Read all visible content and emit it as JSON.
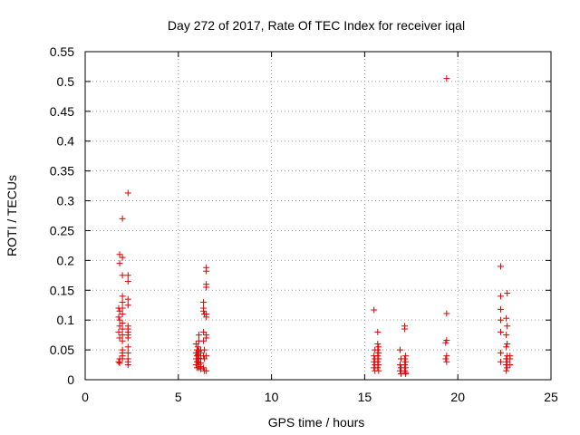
{
  "chart_data": {
    "type": "scatter",
    "title": "Day 272 of 2017, Rate Of TEC Index for receiver iqal",
    "xlabel": "GPS time / hours",
    "ylabel": "ROTI / TECUs",
    "xlim": [
      0,
      25
    ],
    "ylim": [
      0,
      0.55
    ],
    "xticks": [
      0,
      5,
      10,
      15,
      20,
      25
    ],
    "xtick_labels": [
      "0",
      "5",
      "10",
      "15",
      "20",
      "25"
    ],
    "yticks": [
      0,
      0.05,
      0.1,
      0.15,
      0.2,
      0.25,
      0.3,
      0.35,
      0.4,
      0.45,
      0.5,
      0.55
    ],
    "ytick_labels": [
      "0",
      "0.05",
      "0.1",
      "0.15",
      "0.2",
      "0.25",
      "0.3",
      "0.35",
      "0.4",
      "0.45",
      "0.5",
      "0.55"
    ],
    "grid": true,
    "marker": "+",
    "color": "#e00000",
    "series": [
      {
        "name": "ROTI",
        "points": [
          [
            1.85,
            0.21
          ],
          [
            1.85,
            0.195
          ],
          [
            1.8,
            0.12
          ],
          [
            1.85,
            0.115
          ],
          [
            1.8,
            0.105
          ],
          [
            1.85,
            0.1
          ],
          [
            1.85,
            0.09
          ],
          [
            1.8,
            0.08
          ],
          [
            1.85,
            0.07
          ],
          [
            1.85,
            0.035
          ],
          [
            1.8,
            0.03
          ],
          [
            1.85,
            0.028
          ],
          [
            2.0,
            0.27
          ],
          [
            2.0,
            0.205
          ],
          [
            2.0,
            0.175
          ],
          [
            2.0,
            0.14
          ],
          [
            2.0,
            0.13
          ],
          [
            2.0,
            0.12
          ],
          [
            2.0,
            0.11
          ],
          [
            2.0,
            0.095
          ],
          [
            2.0,
            0.085
          ],
          [
            2.0,
            0.075
          ],
          [
            2.0,
            0.065
          ],
          [
            2.0,
            0.05
          ],
          [
            2.0,
            0.045
          ],
          [
            2.0,
            0.04
          ],
          [
            2.0,
            0.035
          ],
          [
            2.3,
            0.313
          ],
          [
            2.3,
            0.175
          ],
          [
            2.3,
            0.165
          ],
          [
            2.3,
            0.135
          ],
          [
            2.3,
            0.125
          ],
          [
            2.3,
            0.09
          ],
          [
            2.3,
            0.085
          ],
          [
            2.3,
            0.08
          ],
          [
            2.3,
            0.075
          ],
          [
            2.3,
            0.07
          ],
          [
            2.3,
            0.055
          ],
          [
            2.3,
            0.045
          ],
          [
            2.3,
            0.035
          ],
          [
            2.3,
            0.03
          ],
          [
            2.3,
            0.025
          ],
          [
            5.95,
            0.06
          ],
          [
            6.0,
            0.05
          ],
          [
            5.95,
            0.045
          ],
          [
            6.0,
            0.04
          ],
          [
            5.95,
            0.035
          ],
          [
            6.0,
            0.03
          ],
          [
            5.95,
            0.025
          ],
          [
            6.0,
            0.02
          ],
          [
            6.1,
            0.075
          ],
          [
            6.1,
            0.065
          ],
          [
            6.05,
            0.055
          ],
          [
            6.1,
            0.048
          ],
          [
            6.05,
            0.042
          ],
          [
            6.1,
            0.036
          ],
          [
            6.05,
            0.03
          ],
          [
            6.1,
            0.025
          ],
          [
            6.1,
            0.02
          ],
          [
            6.2,
            0.05
          ],
          [
            6.2,
            0.045
          ],
          [
            6.2,
            0.035
          ],
          [
            6.2,
            0.028
          ],
          [
            6.2,
            0.022
          ],
          [
            6.2,
            0.018
          ],
          [
            6.35,
            0.13
          ],
          [
            6.35,
            0.12
          ],
          [
            6.35,
            0.115
          ],
          [
            6.4,
            0.11
          ],
          [
            6.35,
            0.08
          ],
          [
            6.35,
            0.065
          ],
          [
            6.4,
            0.05
          ],
          [
            6.35,
            0.04
          ],
          [
            6.4,
            0.035
          ],
          [
            6.35,
            0.02
          ],
          [
            6.4,
            0.015
          ],
          [
            6.5,
            0.188
          ],
          [
            6.5,
            0.182
          ],
          [
            6.5,
            0.16
          ],
          [
            6.5,
            0.155
          ],
          [
            6.5,
            0.11
          ],
          [
            6.5,
            0.105
          ],
          [
            6.5,
            0.075
          ],
          [
            6.5,
            0.07
          ],
          [
            6.5,
            0.04
          ],
          [
            6.5,
            0.015
          ],
          [
            15.5,
            0.117
          ],
          [
            15.55,
            0.05
          ],
          [
            15.5,
            0.04
          ],
          [
            15.55,
            0.035
          ],
          [
            15.5,
            0.03
          ],
          [
            15.55,
            0.025
          ],
          [
            15.5,
            0.02
          ],
          [
            15.55,
            0.015
          ],
          [
            15.7,
            0.08
          ],
          [
            15.7,
            0.06
          ],
          [
            15.75,
            0.055
          ],
          [
            15.7,
            0.05
          ],
          [
            15.75,
            0.045
          ],
          [
            15.7,
            0.04
          ],
          [
            15.75,
            0.035
          ],
          [
            15.7,
            0.03
          ],
          [
            15.75,
            0.025
          ],
          [
            15.7,
            0.02
          ],
          [
            15.75,
            0.015
          ],
          [
            16.9,
            0.05
          ],
          [
            16.95,
            0.035
          ],
          [
            16.9,
            0.025
          ],
          [
            16.95,
            0.02
          ],
          [
            16.9,
            0.015
          ],
          [
            16.95,
            0.01
          ],
          [
            17.15,
            0.09
          ],
          [
            17.15,
            0.085
          ],
          [
            17.2,
            0.04
          ],
          [
            17.15,
            0.035
          ],
          [
            17.2,
            0.03
          ],
          [
            17.15,
            0.025
          ],
          [
            17.2,
            0.02
          ],
          [
            17.15,
            0.015
          ],
          [
            17.2,
            0.012
          ],
          [
            17.2,
            0.01
          ],
          [
            19.4,
            0.505
          ],
          [
            19.4,
            0.111
          ],
          [
            19.4,
            0.066
          ],
          [
            19.35,
            0.062
          ],
          [
            19.4,
            0.04
          ],
          [
            19.35,
            0.035
          ],
          [
            19.4,
            0.03
          ],
          [
            22.3,
            0.19
          ],
          [
            22.3,
            0.14
          ],
          [
            22.3,
            0.118
          ],
          [
            22.3,
            0.1
          ],
          [
            22.3,
            0.08
          ],
          [
            22.3,
            0.045
          ],
          [
            22.3,
            0.03
          ],
          [
            22.65,
            0.145
          ],
          [
            22.6,
            0.103
          ],
          [
            22.65,
            0.09
          ],
          [
            22.6,
            0.075
          ],
          [
            22.65,
            0.06
          ],
          [
            22.6,
            0.055
          ],
          [
            22.65,
            0.04
          ],
          [
            22.6,
            0.035
          ],
          [
            22.65,
            0.03
          ],
          [
            22.6,
            0.025
          ],
          [
            22.65,
            0.02
          ],
          [
            22.6,
            0.015
          ],
          [
            22.8,
            0.04
          ],
          [
            22.8,
            0.035
          ],
          [
            22.8,
            0.025
          ]
        ]
      }
    ]
  }
}
